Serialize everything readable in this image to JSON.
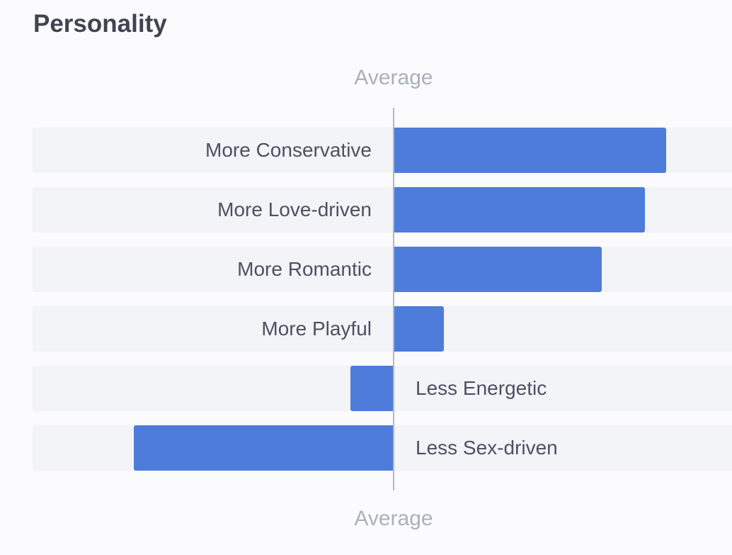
{
  "section": {
    "title": "Personality"
  },
  "chart_data": {
    "type": "bar",
    "orientation": "horizontal-diverging",
    "baseline_label_top": "Average",
    "baseline_label_bottom": "Average",
    "categories": [
      "More Conservative",
      "More Love-driven",
      "More Romantic",
      "More Playful",
      "Less Energetic",
      "Less Sex-driven"
    ],
    "values": [
      0.82,
      0.755,
      0.625,
      0.15,
      -0.13,
      -0.78
    ],
    "xlim": [
      -1,
      1
    ],
    "bar_color": "#4d7cdb",
    "row_background": "#f3f4f8",
    "grid": false
  }
}
